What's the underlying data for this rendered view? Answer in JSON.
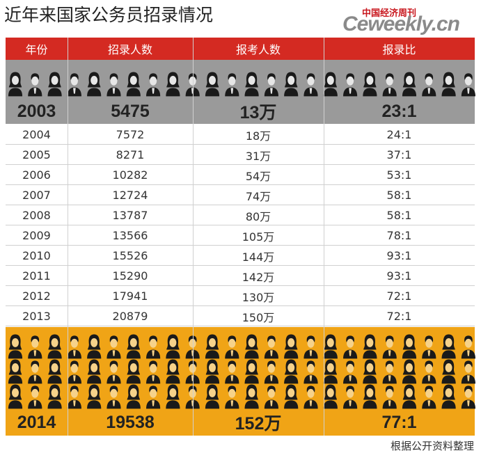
{
  "header": {
    "title": "近年来国家公务员招录情况",
    "logo_cn": "中国经济周刊",
    "logo_site": "Ceweekly.cn"
  },
  "table": {
    "columns": [
      "年份",
      "招录人数",
      "报考人数",
      "报录比"
    ],
    "highlight_top": [
      2003,
      5475,
      "13万",
      "23:1"
    ],
    "rows": [
      [
        2004,
        7572,
        "18万",
        "24:1"
      ],
      [
        2005,
        8271,
        "31万",
        "37:1"
      ],
      [
        2006,
        10282,
        "54万",
        "53:1"
      ],
      [
        2007,
        12724,
        "74万",
        "58:1"
      ],
      [
        2008,
        13787,
        "80万",
        "58:1"
      ],
      [
        2009,
        13566,
        "105万",
        "78:1"
      ],
      [
        2010,
        15526,
        "144万",
        "93:1"
      ],
      [
        2011,
        15290,
        "142万",
        "93:1"
      ],
      [
        2012,
        17941,
        "130万",
        "72:1"
      ],
      [
        2013,
        20879,
        "150万",
        "72:1"
      ]
    ],
    "highlight_bottom": [
      2014,
      19538,
      "152万",
      "77:1"
    ]
  },
  "footer": "根据公开资料整理"
}
